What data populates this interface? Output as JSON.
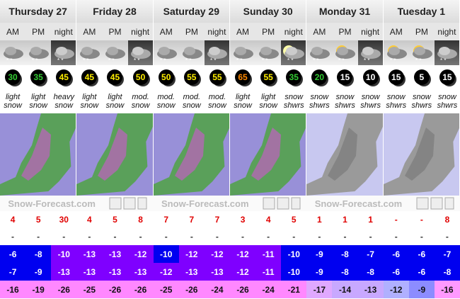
{
  "days": [
    "Thursday 27",
    "Friday 28",
    "Saturday 29",
    "Sunday 30",
    "Monday 31",
    "Tuesday 1"
  ],
  "periods": [
    "AM",
    "PM",
    "night",
    "AM",
    "PM",
    "night",
    "AM",
    "PM",
    "night",
    "AM",
    "PM",
    "night",
    "AM",
    "PM",
    "night",
    "AM",
    "PM",
    "night"
  ],
  "wind": {
    "values": [
      30,
      35,
      45,
      45,
      45,
      50,
      50,
      55,
      55,
      65,
      55,
      35,
      20,
      15,
      10,
      15,
      5,
      15
    ],
    "colors": [
      "#33cc33",
      "#33cc33",
      "#ffee00",
      "#ffee00",
      "#ffee00",
      "#ffee00",
      "#ffee00",
      "#ffee00",
      "#ffee00",
      "#ff8800",
      "#ffee00",
      "#33cc33",
      "#33cc33",
      "#ffffff",
      "#ffffff",
      "#ffffff",
      "#ffffff",
      "#ffffff"
    ]
  },
  "weather": [
    "light snow",
    "light snow",
    "heavy snow",
    "light snow",
    "light snow",
    "mod. snow",
    "mod. snow",
    "mod. snow",
    "mod. snow",
    "light snow",
    "light snow",
    "snow shwrs",
    "snow shwrs",
    "snow shwrs",
    "snow shwrs",
    "snow shwrs",
    "snow shwrs",
    "snow shwrs"
  ],
  "watermarks": [
    "Snow-Forecast.com",
    "Snow-Forecast.com",
    "Snow-Forecast.com"
  ],
  "snow": [
    4,
    5,
    30,
    4,
    5,
    8,
    7,
    7,
    7,
    3,
    4,
    5,
    1,
    1,
    1,
    "-",
    "-",
    8
  ],
  "rain": [
    "-",
    "-",
    "-",
    "-",
    "-",
    "-",
    "-",
    "-",
    "-",
    "-",
    "-",
    "-",
    "-",
    "-",
    "-",
    "-",
    "-",
    "-"
  ],
  "max_temp": {
    "values": [
      -6,
      -8,
      -10,
      -13,
      -13,
      -12,
      -10,
      -12,
      -12,
      -12,
      -11,
      -10,
      -9,
      -8,
      -7,
      -6,
      -6,
      -7
    ],
    "colors": [
      "#0000f0",
      "#0000f0",
      "#7f00ff",
      "#7f00ff",
      "#7f00ff",
      "#7f00ff",
      "#0000f0",
      "#7f00ff",
      "#7f00ff",
      "#7f00ff",
      "#7f00ff",
      "#0000f0",
      "#0000f0",
      "#0000f0",
      "#0000f0",
      "#0000f0",
      "#0000f0",
      "#0000f0"
    ]
  },
  "min_temp": {
    "values": [
      -7,
      -9,
      -13,
      -13,
      -13,
      -13,
      -12,
      -13,
      -13,
      -12,
      -11,
      -10,
      -9,
      -8,
      -8,
      -6,
      -6,
      -8
    ],
    "colors": [
      "#0000f0",
      "#0000f0",
      "#7f00ff",
      "#7f00ff",
      "#7f00ff",
      "#7f00ff",
      "#7f00ff",
      "#7f00ff",
      "#7f00ff",
      "#7f00ff",
      "#7f00ff",
      "#0000f0",
      "#0000f0",
      "#0000f0",
      "#0000f0",
      "#0000f0",
      "#0000f0",
      "#0000f0"
    ]
  },
  "chill": {
    "values": [
      -16,
      -19,
      -26,
      -25,
      -26,
      -26,
      -25,
      -26,
      -24,
      -26,
      -24,
      -21,
      -17,
      -14,
      -13,
      -12,
      -9,
      -16
    ],
    "colors": [
      "#ff88ff",
      "#ff88ff",
      "#ff88ff",
      "#ff88ff",
      "#ff88ff",
      "#ff88ff",
      "#ff88ff",
      "#ff88ff",
      "#ff88ff",
      "#ff88ff",
      "#ff88ff",
      "#ff88ff",
      "#e0a8ff",
      "#c8a8ff",
      "#c8a8ff",
      "#b0b0ff",
      "#8c8cff",
      "#ff99ff"
    ]
  }
}
